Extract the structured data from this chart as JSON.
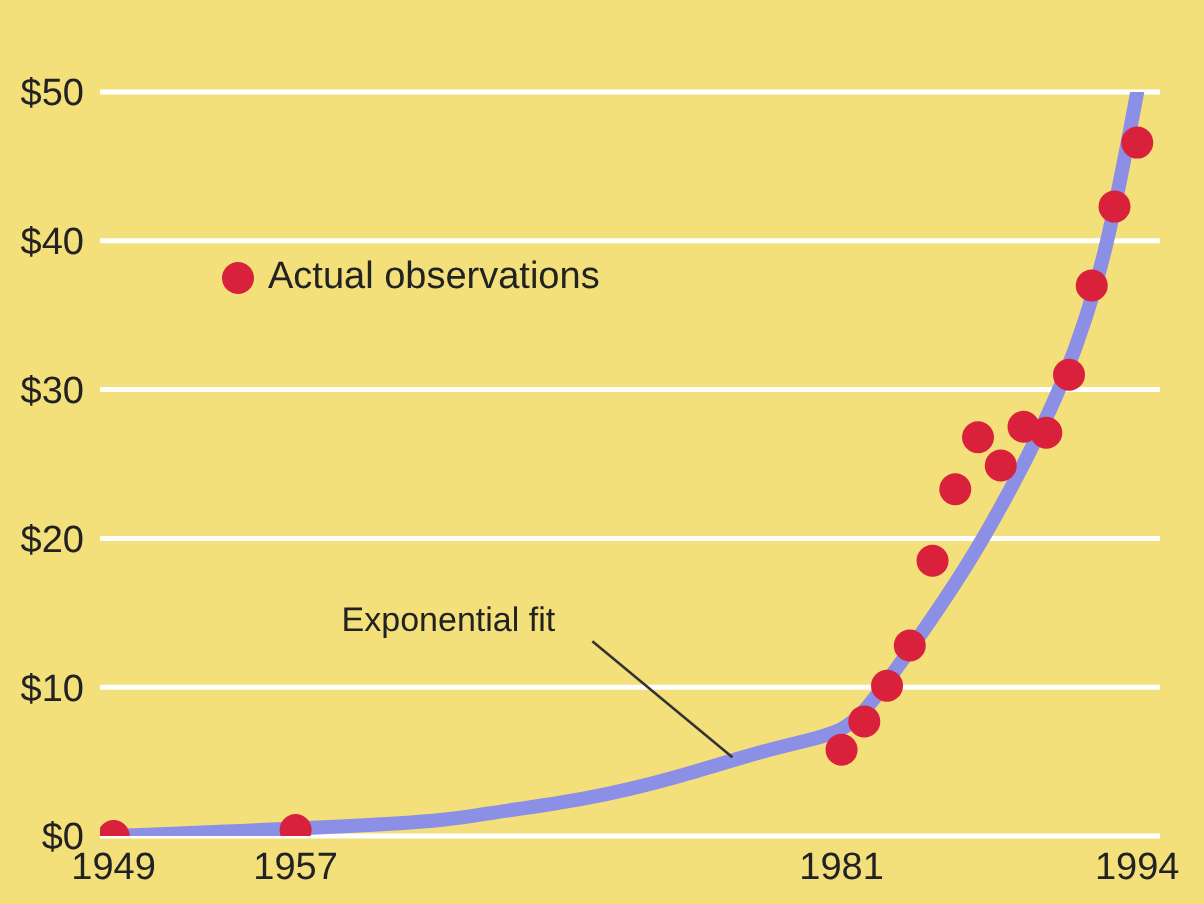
{
  "chart_data": {
    "type": "scatter",
    "legend": "top left",
    "grid": "y",
    "xlim": [
      1948.4,
      1995
    ],
    "ylim": [
      0,
      50
    ],
    "xticks": [
      1949,
      1957,
      1981,
      1994
    ],
    "yticks": [
      {
        "value": 0,
        "label": "$0"
      },
      {
        "value": 10,
        "label": "$10"
      },
      {
        "value": 20,
        "label": "$20"
      },
      {
        "value": 30,
        "label": "$30"
      },
      {
        "value": 40,
        "label": "$40"
      },
      {
        "value": 50,
        "label": "$50"
      }
    ],
    "annotations": [
      {
        "text": "Exponential fit",
        "x": 1976.2,
        "y": 5.3
      }
    ],
    "series": [
      {
        "name": "Actual observations",
        "color": "#d9213b",
        "marker": "circle",
        "x": [
          1949,
          1957,
          1981,
          1982,
          1983,
          1984,
          1985,
          1986,
          1987,
          1988,
          1989,
          1990,
          1991,
          1992,
          1993,
          1994
        ],
        "values": [
          0.0,
          0.4,
          5.8,
          7.7,
          10.1,
          12.8,
          18.5,
          23.3,
          26.8,
          24.9,
          27.5,
          27.1,
          31,
          37,
          42.3,
          46.6
        ]
      },
      {
        "type": "line",
        "color": "#8c8fe6",
        "marker": "none",
        "x": [
          1949,
          1961,
          1965.4,
          1969.6,
          1973.8,
          1978.1,
          1981,
          1983.1,
          1986.5,
          1989.1,
          1990.8,
          1992.5,
          1994
        ],
        "values": [
          0,
          0.8,
          1.5,
          2.5,
          4.0,
          5.9,
          7.2,
          10.6,
          18.2,
          25.3,
          30.9,
          38.9,
          50
        ]
      }
    ]
  }
}
